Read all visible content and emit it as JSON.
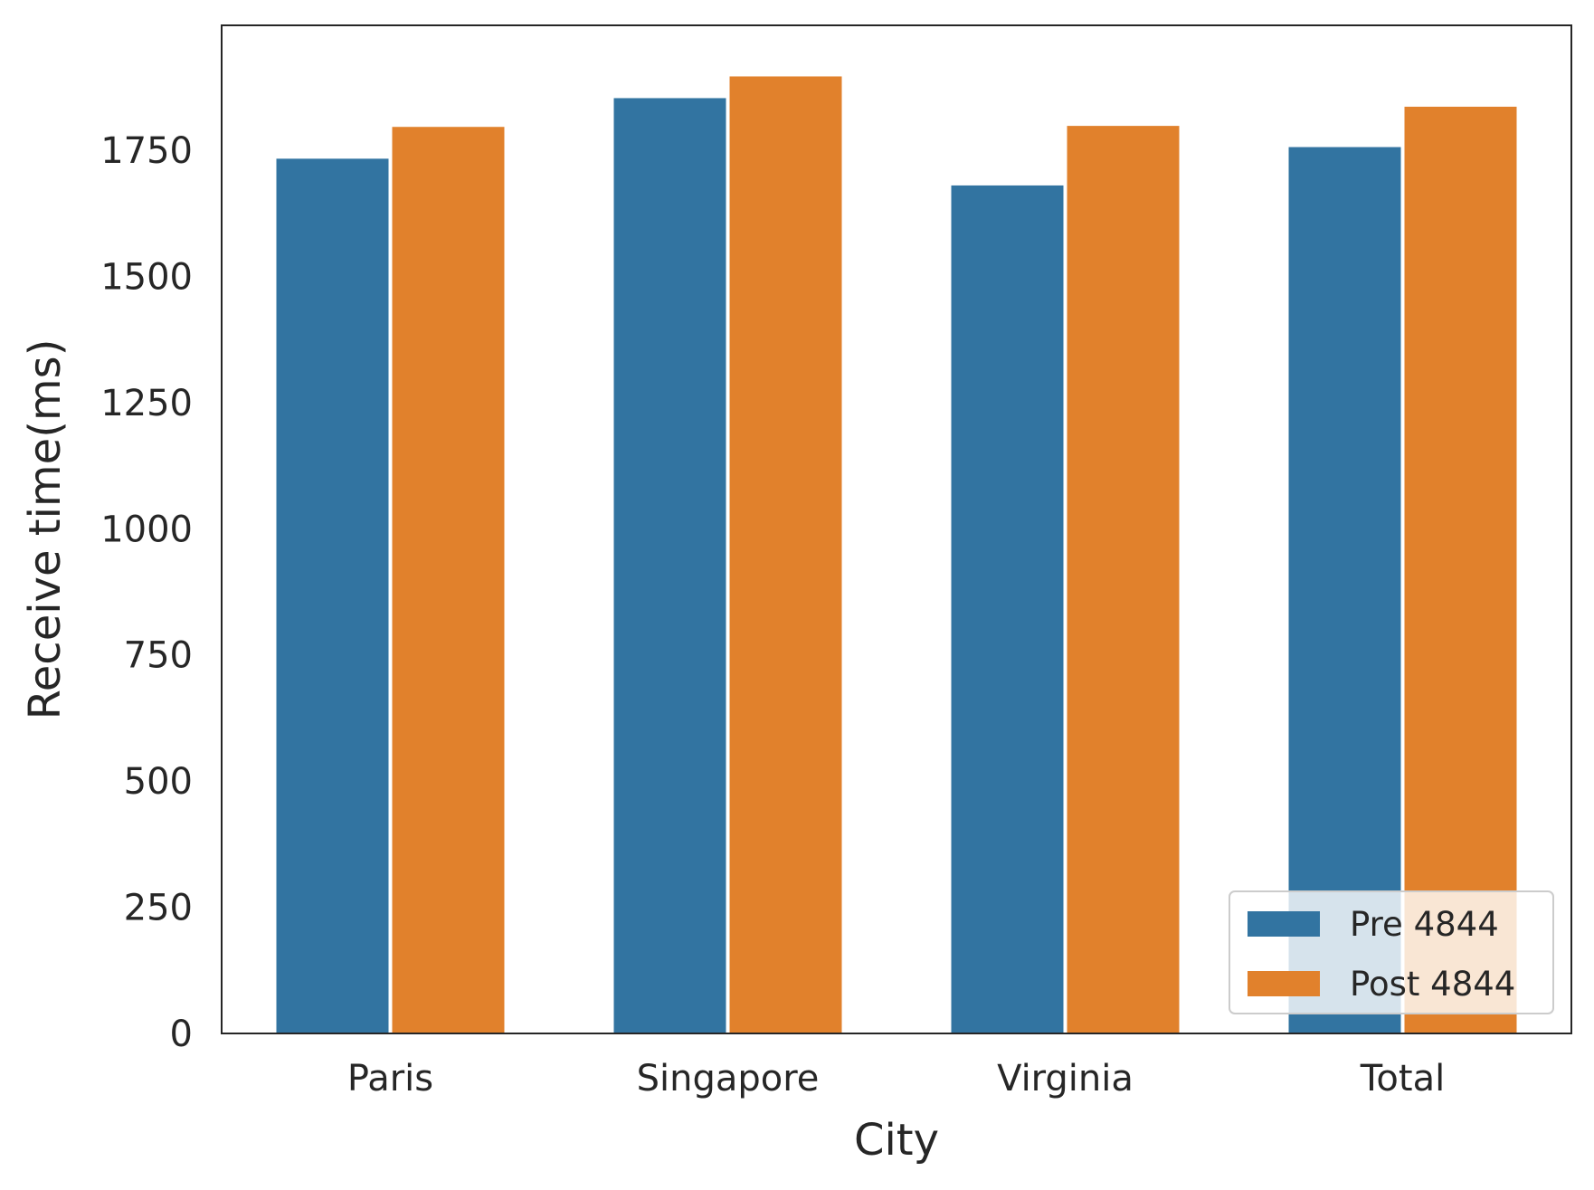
{
  "chart_data": {
    "type": "bar",
    "title": "",
    "xlabel": "City",
    "ylabel": "Receive time(ms)",
    "categories": [
      "Paris",
      "Singapore",
      "Virginia",
      "Total"
    ],
    "series": [
      {
        "name": "Pre 4844",
        "color": "#3274a1",
        "values": [
          1735,
          1855,
          1682,
          1758
        ]
      },
      {
        "name": "Post 4844",
        "color": "#e1812c",
        "values": [
          1798,
          1898,
          1800,
          1838
        ]
      }
    ],
    "ylim": [
      0,
      2000
    ],
    "yticks": [
      0,
      250,
      500,
      750,
      1000,
      1250,
      1500,
      1750
    ],
    "grid": false,
    "legend_position": "bottom-right"
  }
}
